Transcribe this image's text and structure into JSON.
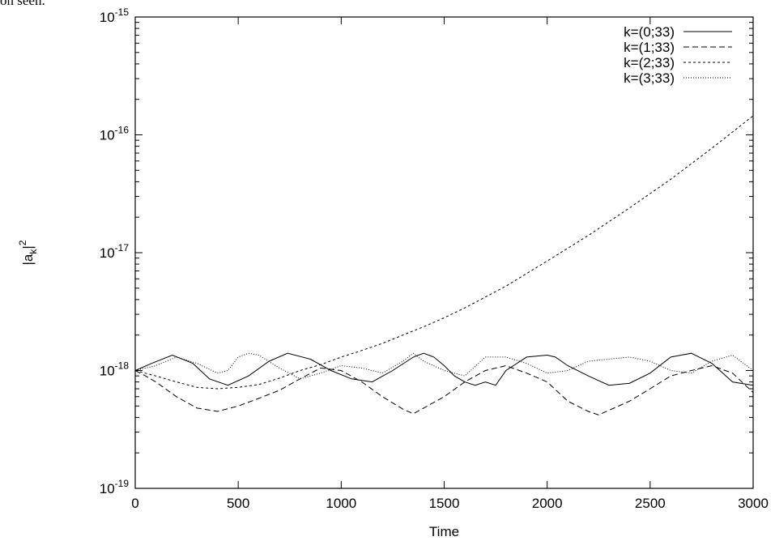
{
  "header_fragment": "on seen.",
  "chart_data": {
    "type": "line",
    "title": "",
    "xlabel": "Time",
    "ylabel": "|a_k|^2",
    "xlim": [
      0,
      3000
    ],
    "ylim": [
      1e-19,
      1e-15
    ],
    "yscale": "log",
    "x_ticks": [
      "0",
      "500",
      "1000",
      "1500",
      "2000",
      "2500",
      "3000"
    ],
    "y_ticks": [
      {
        "base": "10",
        "exp": "-15",
        "value": 1e-15
      },
      {
        "base": "10",
        "exp": "-16",
        "value": 1e-16
      },
      {
        "base": "10",
        "exp": "-17",
        "value": 1e-17
      },
      {
        "base": "10",
        "exp": "-18",
        "value": 1e-18
      },
      {
        "base": "10",
        "exp": "-19",
        "value": 1e-19
      }
    ],
    "grid": false,
    "legend_position": "top-right",
    "series": [
      {
        "name": "k=(0;33)",
        "style": "solid",
        "color": "#000000",
        "x": [
          0,
          80,
          180,
          280,
          360,
          450,
          550,
          650,
          740,
          850,
          950,
          1050,
          1150,
          1250,
          1350,
          1400,
          1450,
          1500,
          1550,
          1600,
          1650,
          1700,
          1750,
          1800,
          1900,
          2000,
          2040,
          2100,
          2200,
          2300,
          2400,
          2500,
          2600,
          2650,
          2700,
          2800,
          2900,
          3000
        ],
        "y": [
          1e-18,
          1.15e-18,
          1.35e-18,
          1.15e-18,
          8.5e-19,
          7.5e-19,
          9e-19,
          1.2e-18,
          1.4e-18,
          1.25e-18,
          1e-18,
          8.5e-19,
          8e-19,
          1e-18,
          1.3e-18,
          1.4e-18,
          1.3e-18,
          1.1e-18,
          9e-19,
          8e-19,
          7.5e-19,
          8e-19,
          7.5e-19,
          1e-18,
          1.3e-18,
          1.35e-18,
          1.3e-18,
          1.1e-18,
          9e-19,
          7.5e-19,
          7.8e-19,
          9.5e-19,
          1.3e-18,
          1.35e-18,
          1.4e-18,
          1.15e-18,
          8e-19,
          7.5e-19
        ]
      },
      {
        "name": "k=(1;33)",
        "style": "dashed",
        "color": "#000000",
        "x": [
          0,
          50,
          100,
          200,
          300,
          400,
          500,
          600,
          700,
          800,
          900,
          1000,
          1100,
          1200,
          1300,
          1350,
          1400,
          1500,
          1600,
          1700,
          1800,
          1900,
          2000,
          2100,
          2200,
          2250,
          2300,
          2400,
          2500,
          2600,
          2700,
          2800,
          2900,
          3000
        ],
        "y": [
          1e-18,
          9e-19,
          8e-19,
          6e-19,
          4.8e-19,
          4.5e-19,
          5e-19,
          5.8e-19,
          6.8e-19,
          8.5e-19,
          1.05e-18,
          1e-18,
          8e-19,
          6e-19,
          4.7e-19,
          4.3e-19,
          4.8e-19,
          6e-19,
          8e-19,
          1e-18,
          1.1e-18,
          9.5e-19,
          8e-19,
          5.5e-19,
          4.5e-19,
          4.2e-19,
          4.6e-19,
          5.5e-19,
          7e-19,
          9e-19,
          1e-18,
          1.1e-18,
          9.5e-19,
          6.5e-19
        ]
      },
      {
        "name": "k=(2;33)",
        "style": "short-dashed",
        "color": "#000000",
        "x": [
          0,
          100,
          200,
          300,
          400,
          500,
          600,
          700,
          800,
          900,
          1000,
          1100,
          1200,
          1300,
          1400,
          1500,
          1600,
          1800,
          2000,
          2200,
          2400,
          2600,
          2800,
          3000
        ],
        "y": [
          1e-18,
          9e-19,
          8e-19,
          7.2e-19,
          7e-19,
          7.2e-19,
          7.6e-19,
          8.6e-19,
          1e-18,
          1.12e-18,
          1.3e-18,
          1.48e-18,
          1.7e-18,
          2e-18,
          2.35e-18,
          2.8e-18,
          3.4e-18,
          5.2e-18,
          8.5e-18,
          1.4e-17,
          2.4e-17,
          4.2e-17,
          7.7e-17,
          1.45e-16
        ]
      },
      {
        "name": "k=(3;33)",
        "style": "dotted",
        "color": "#000000",
        "x": [
          0,
          100,
          200,
          300,
          400,
          450,
          500,
          550,
          600,
          700,
          800,
          900,
          1000,
          1100,
          1200,
          1300,
          1350,
          1400,
          1500,
          1600,
          1700,
          1800,
          1900,
          2000,
          2100,
          2200,
          2300,
          2400,
          2500,
          2600,
          2700,
          2800,
          2900,
          3000
        ],
        "y": [
          1e-18,
          1.1e-18,
          1.3e-18,
          1.15e-18,
          9.5e-19,
          1e-18,
          1.3e-18,
          1.4e-18,
          1.35e-18,
          1.05e-18,
          8.5e-19,
          9.5e-19,
          1.1e-18,
          1.05e-18,
          9.5e-19,
          1.2e-18,
          1.4e-18,
          1.2e-18,
          1e-18,
          9e-19,
          1.3e-18,
          1.3e-18,
          1.15e-18,
          9.5e-19,
          1e-18,
          1.2e-18,
          1.25e-18,
          1.3e-18,
          1.2e-18,
          1e-18,
          9.5e-19,
          1.2e-18,
          1.35e-18,
          1e-18
        ]
      }
    ]
  }
}
